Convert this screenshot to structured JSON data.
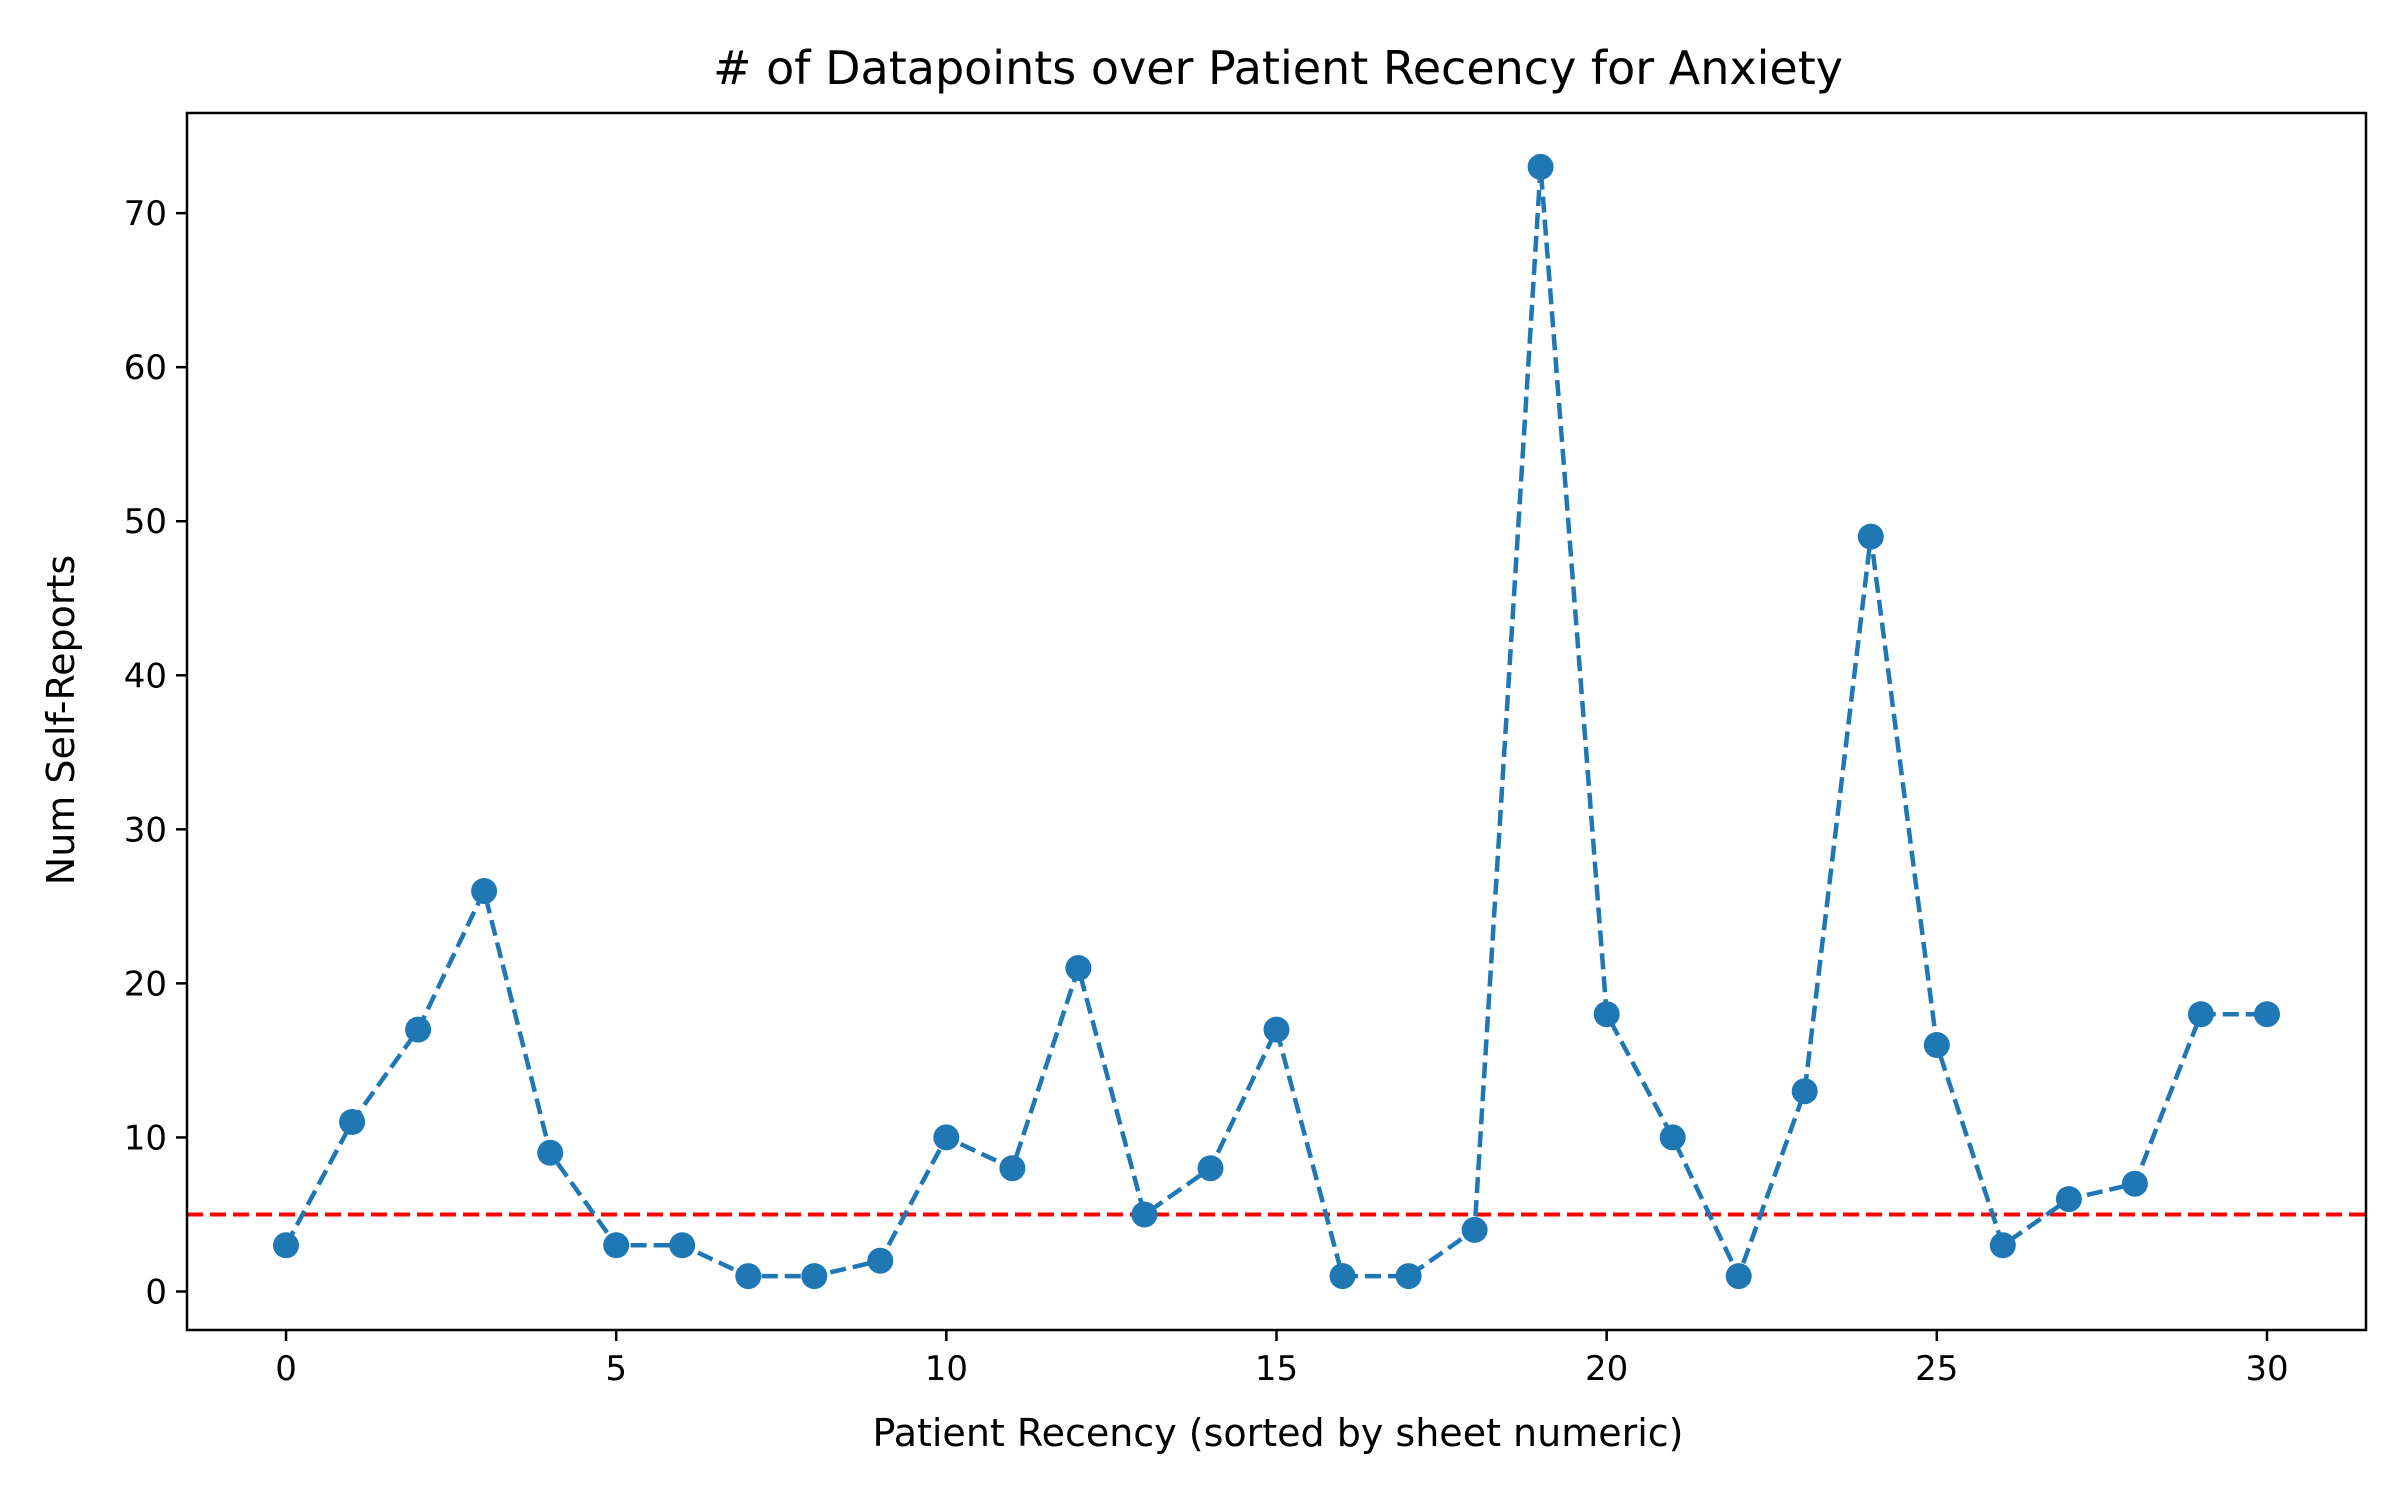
{
  "chart_data": {
    "type": "line",
    "title": "# of Datapoints over Patient Recency for Anxiety",
    "xlabel": "Patient Recency (sorted by sheet numeric)",
    "ylabel": "Num Self-Reports",
    "xlim": [
      -1.5,
      31.5
    ],
    "ylim": [
      -2.5,
      76.5
    ],
    "xticks": [
      0,
      5,
      10,
      15,
      20,
      25,
      30
    ],
    "yticks": [
      0,
      10,
      20,
      30,
      40,
      50,
      60,
      70
    ],
    "grid": false,
    "series": [
      {
        "color": "#1f77b4",
        "line_style": "dashed",
        "marker": "circle",
        "x": [
          0,
          1,
          2,
          3,
          4,
          5,
          6,
          7,
          8,
          9,
          10,
          11,
          12,
          13,
          14,
          15,
          16,
          17,
          18,
          19,
          20,
          21,
          22,
          23,
          24,
          25,
          26,
          27,
          28,
          29,
          30
        ],
        "values": [
          3,
          11,
          17,
          26,
          9,
          3,
          3,
          1,
          1,
          2,
          10,
          8,
          21,
          5,
          8,
          17,
          1,
          1,
          4,
          73,
          18,
          10,
          1,
          13,
          49,
          16,
          3,
          6,
          7,
          18,
          18
        ]
      }
    ],
    "reference_lines": [
      {
        "orientation": "horizontal",
        "y": 5,
        "color": "#ff0000",
        "line_style": "dashed"
      }
    ]
  }
}
